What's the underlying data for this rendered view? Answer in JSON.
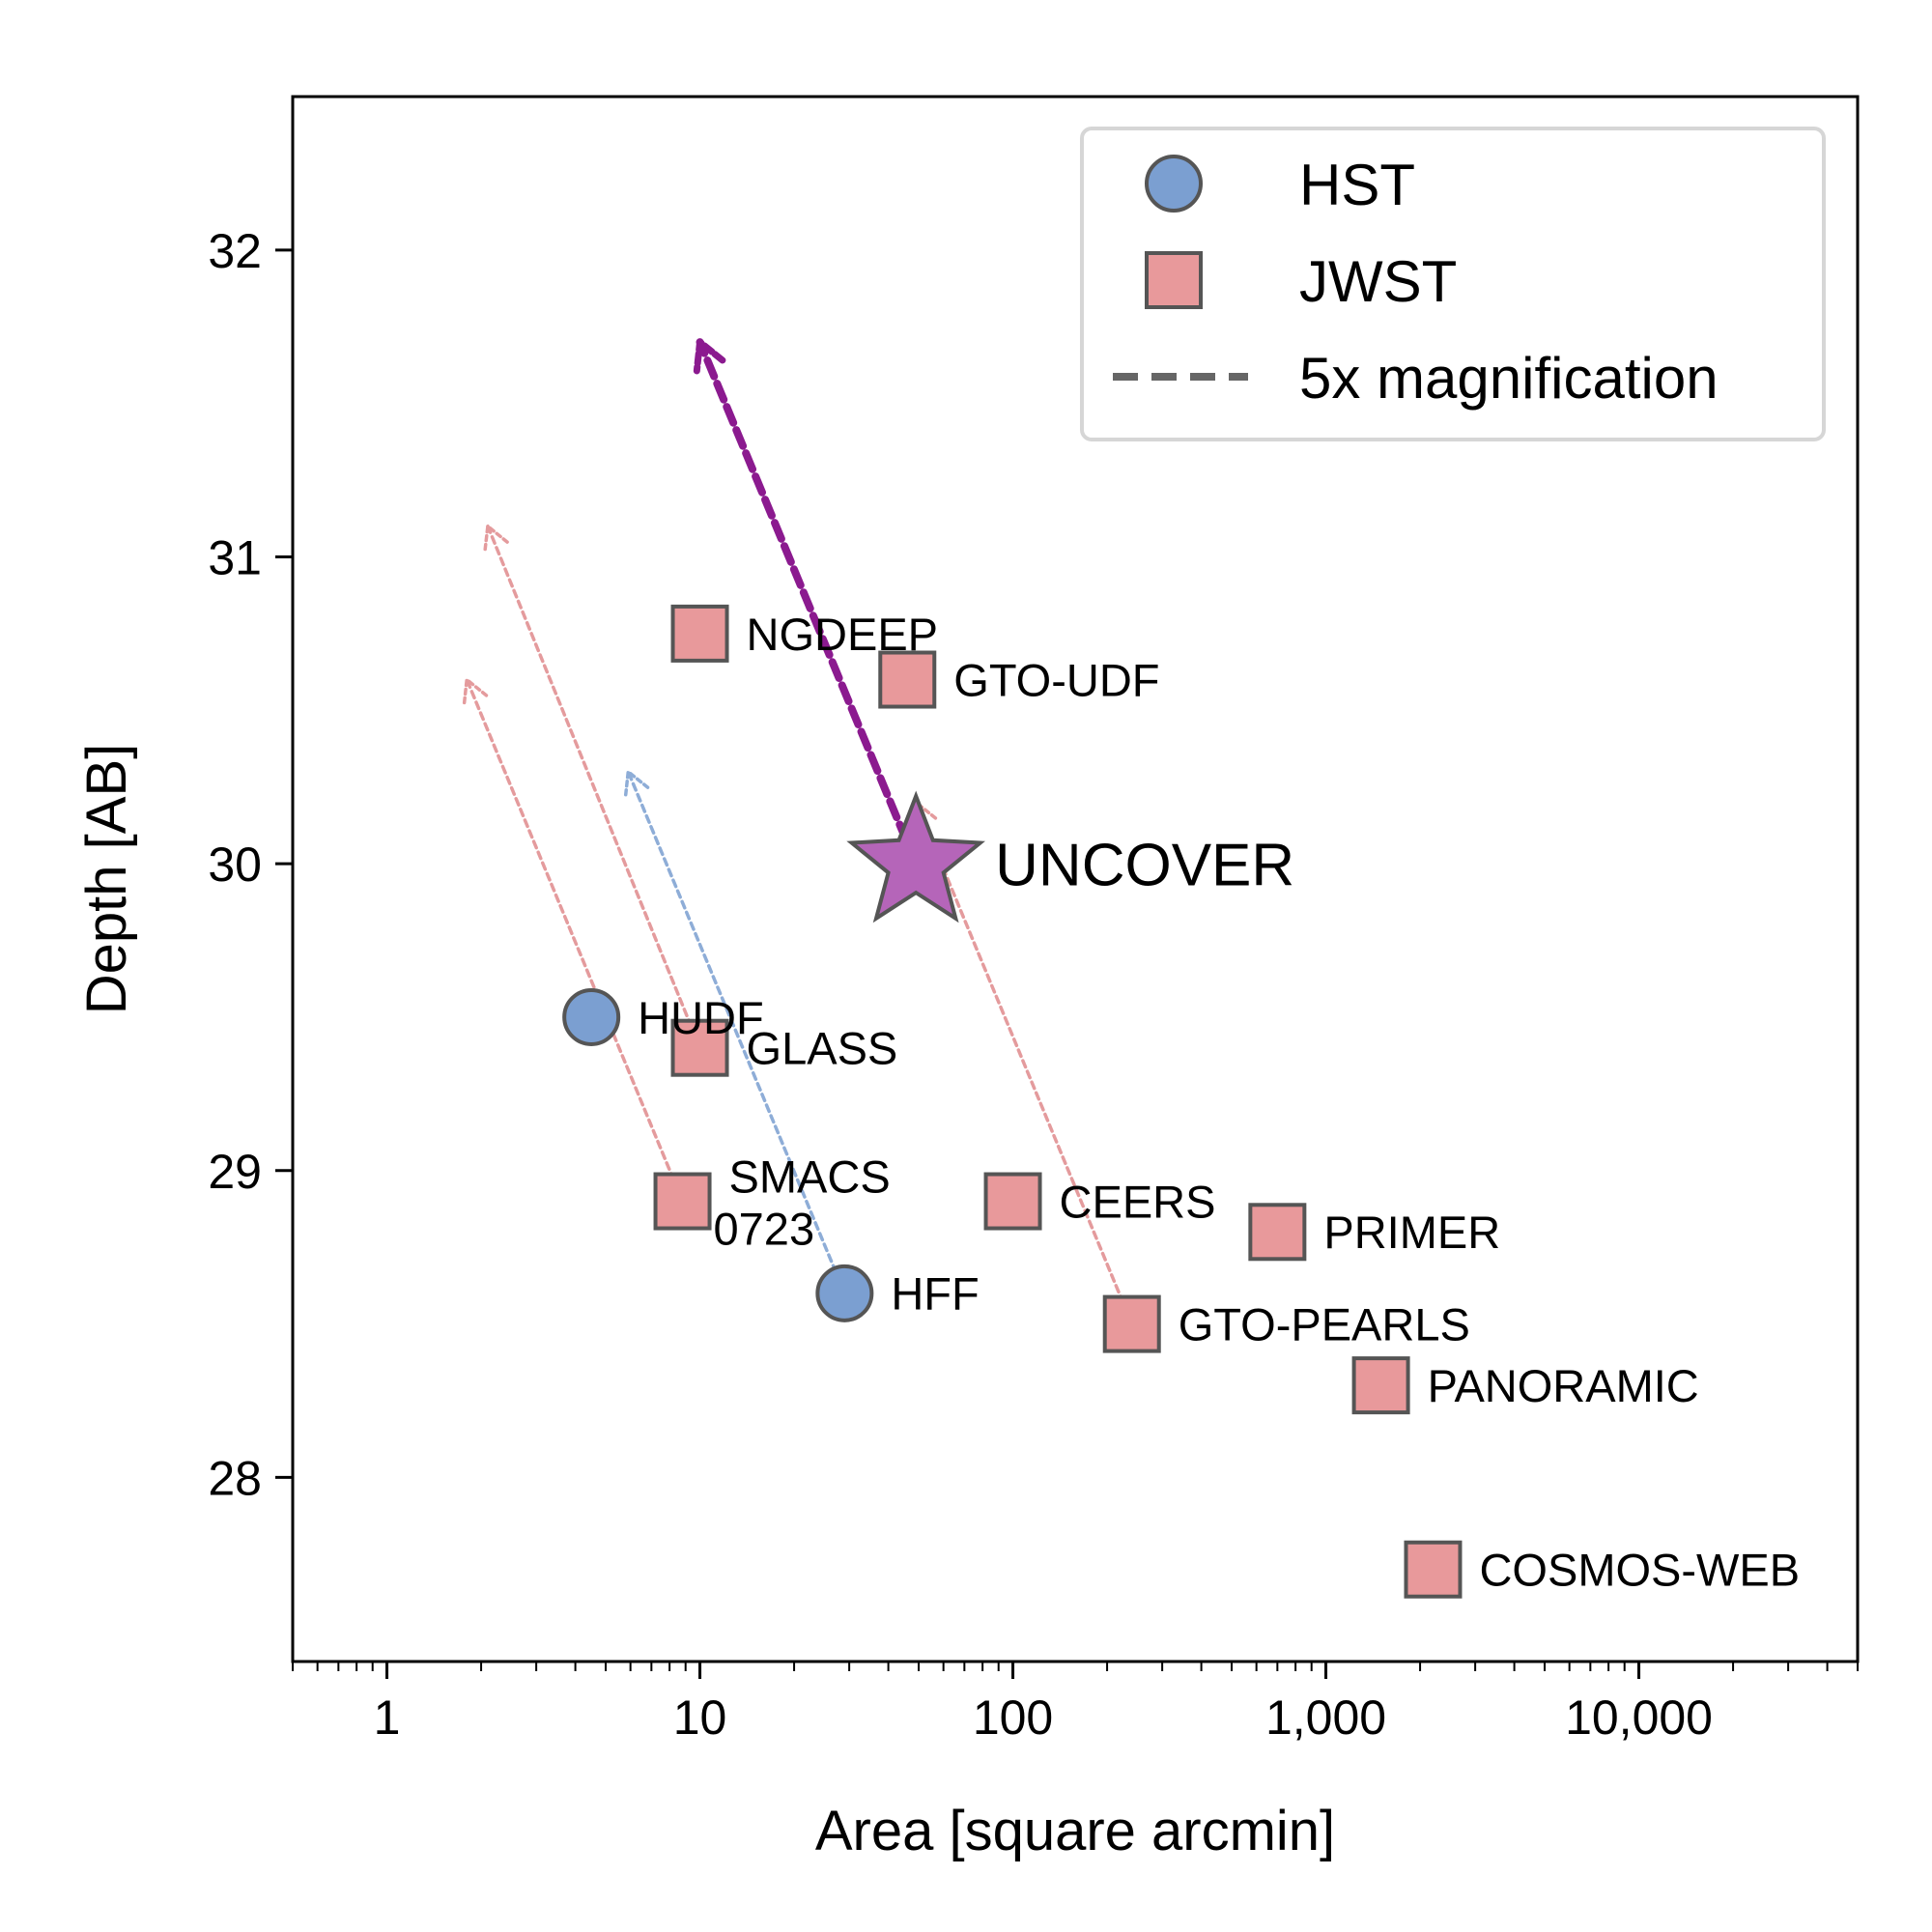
{
  "chart_data": {
    "type": "scatter",
    "xlabel": "Area [square arcmin]",
    "ylabel": "Depth [AB]",
    "xscale": "log",
    "xlim": [
      0.5,
      50000
    ],
    "ylim": [
      27.4,
      32.5
    ],
    "x_ticks": [
      {
        "value": 1,
        "label": "1"
      },
      {
        "value": 10,
        "label": "10"
      },
      {
        "value": 100,
        "label": "100"
      },
      {
        "value": 1000,
        "label": "1,000"
      },
      {
        "value": 10000,
        "label": "10,000"
      }
    ],
    "y_ticks": [
      {
        "value": 28,
        "label": "28"
      },
      {
        "value": 29,
        "label": "29"
      },
      {
        "value": 30,
        "label": "30"
      },
      {
        "value": 31,
        "label": "31"
      },
      {
        "value": 32,
        "label": "32"
      }
    ],
    "grid": false,
    "legend": {
      "position": "top-right",
      "entries": [
        {
          "label": "HST",
          "marker": "circle"
        },
        {
          "label": "JWST",
          "marker": "square"
        },
        {
          "label": "5x magnification",
          "marker": "dashed-line"
        }
      ]
    },
    "colors": {
      "hst": "#7b9fd1",
      "jwst": "#e8999b",
      "uncover": "#b565b9",
      "uncover_arrow": "#8b1a8f",
      "hst_arrow": "#7b9fd1",
      "jwst_arrow": "#e08a8c",
      "marker_edge": "#555555"
    },
    "series": [
      {
        "name": "HST",
        "marker": "circle",
        "points": [
          {
            "label": "HUDF",
            "x": 4.5,
            "y": 29.5
          },
          {
            "label": "HFF",
            "x": 29,
            "y": 28.6
          }
        ]
      },
      {
        "name": "JWST",
        "marker": "square",
        "points": [
          {
            "label": "NGDEEP",
            "x": 10,
            "y": 30.75
          },
          {
            "label": "GTO-UDF",
            "x": 46,
            "y": 30.6
          },
          {
            "label": "GLASS",
            "x": 10,
            "y": 29.4
          },
          {
            "label": "SMACS\n0723",
            "x": 8.8,
            "y": 28.9
          },
          {
            "label": "CEERS",
            "x": 100,
            "y": 28.9
          },
          {
            "label": "PRIMER",
            "x": 700,
            "y": 28.8
          },
          {
            "label": "GTO-PEARLS",
            "x": 240,
            "y": 28.5
          },
          {
            "label": "PANORAMIC",
            "x": 1500,
            "y": 28.3
          },
          {
            "label": "COSMOS-WEB",
            "x": 2200,
            "y": 27.7
          }
        ]
      },
      {
        "name": "UNCOVER",
        "marker": "star",
        "points": [
          {
            "label": "UNCOVER",
            "x": 49,
            "y": 30.0
          }
        ]
      }
    ],
    "magnification_arrows": [
      {
        "from": "UNCOVER",
        "x0": 49,
        "y0": 30.0,
        "x1": 10,
        "y1": 31.7,
        "color_key": "uncover_arrow"
      },
      {
        "from": "HFF",
        "x0": 29,
        "y0": 28.6,
        "x1": 5.9,
        "y1": 30.3,
        "color_key": "hst_arrow"
      },
      {
        "from": "GLASS",
        "x0": 10,
        "y0": 29.4,
        "x1": 2.1,
        "y1": 31.1,
        "color_key": "jwst_arrow"
      },
      {
        "from": "SMACS\n0723",
        "x0": 8.8,
        "y0": 28.9,
        "x1": 1.8,
        "y1": 30.6,
        "color_key": "jwst_arrow"
      },
      {
        "from": "GTO-PEARLS",
        "x0": 240,
        "y0": 28.5,
        "x1": 49,
        "y1": 30.2,
        "color_key": "jwst_arrow"
      }
    ]
  }
}
